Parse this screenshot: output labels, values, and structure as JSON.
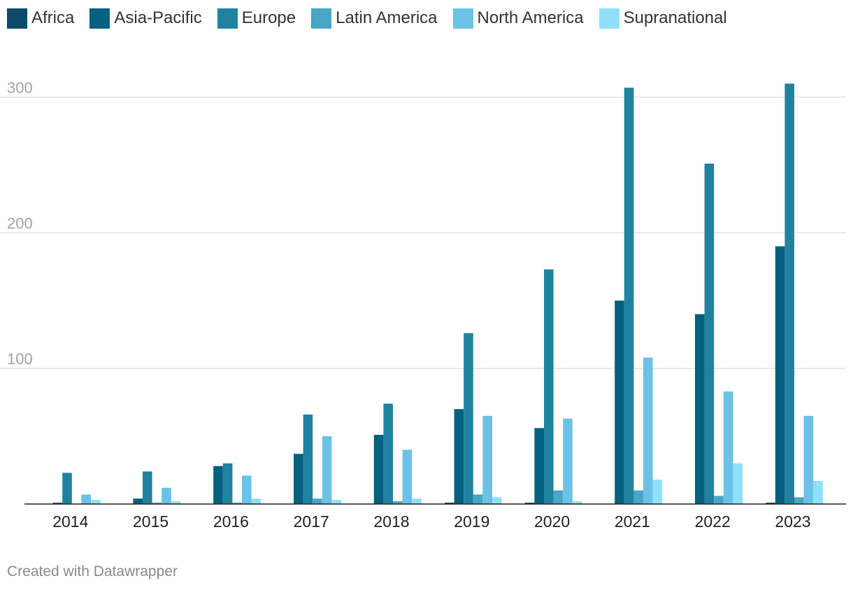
{
  "chart_data": {
    "type": "bar",
    "categories": [
      "2014",
      "2015",
      "2016",
      "2017",
      "2018",
      "2019",
      "2020",
      "2021",
      "2022",
      "2023"
    ],
    "series": [
      {
        "name": "Africa",
        "color": "#0b4a6b",
        "values": [
          0,
          0,
          0,
          0,
          0,
          1,
          1,
          0,
          0,
          1
        ]
      },
      {
        "name": "Asia-Pacific",
        "color": "#03607f",
        "values": [
          1,
          4,
          28,
          37,
          51,
          70,
          56,
          150,
          140,
          190
        ]
      },
      {
        "name": "Europe",
        "color": "#1f82a1",
        "values": [
          23,
          24,
          30,
          66,
          74,
          126,
          173,
          307,
          251,
          310
        ]
      },
      {
        "name": "Latin America",
        "color": "#49a6c7",
        "values": [
          0,
          1,
          1,
          4,
          2,
          7,
          10,
          10,
          6,
          5
        ]
      },
      {
        "name": "North America",
        "color": "#6cc2e6",
        "values": [
          7,
          12,
          21,
          50,
          40,
          65,
          63,
          108,
          83,
          65
        ]
      },
      {
        "name": "Supranational",
        "color": "#8fe0fd",
        "values": [
          3,
          2,
          4,
          3,
          4,
          5,
          2,
          18,
          30,
          17
        ]
      }
    ],
    "y_ticks": [
      "100",
      "200",
      "300"
    ],
    "ylim": [
      0,
      330
    ],
    "grid": true,
    "legend_position": "top-left"
  },
  "footer": {
    "credit": "Created with Datawrapper"
  }
}
